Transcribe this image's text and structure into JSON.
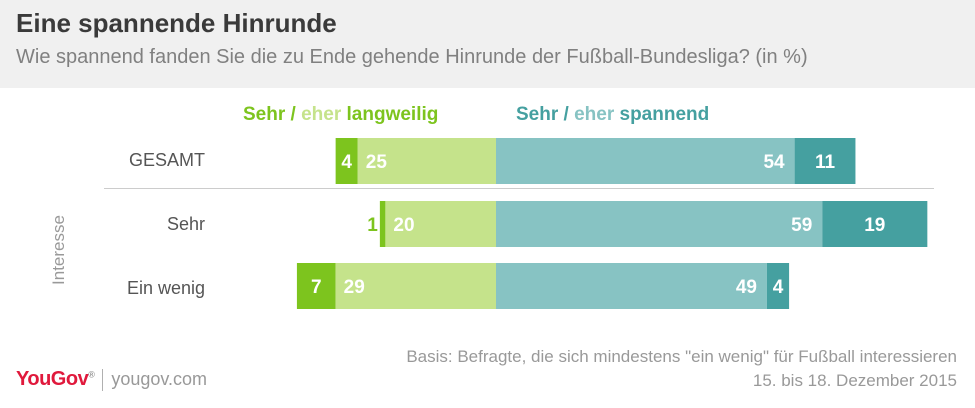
{
  "header": {
    "title": "Eine spannende Hinrunde",
    "subtitle": "Wie spannend fanden Sie die zu Ende gehende Hinrunde der Fußball-Bundesliga? (in %)"
  },
  "legend": {
    "boring_strong": "Sehr",
    "boring_sep": " / ",
    "boring_light": "eher",
    "boring_rest": " langweilig",
    "exciting_strong": "Sehr",
    "exciting_sep": " / ",
    "exciting_light": "eher",
    "exciting_rest": " spannend"
  },
  "group_label": "Interesse",
  "colors": {
    "very_boring": "#7dc41e",
    "rather_boring": "#c5e38b",
    "rather_exciting": "#87c3c3",
    "very_exciting": "#45a0a0",
    "boring_text": "#7dc41e",
    "exciting_text": "#45a0a0"
  },
  "chart_data": {
    "type": "bar",
    "orientation": "horizontal",
    "stacked": "diverging",
    "unit": "%",
    "categories": [
      "GESAMT",
      "Sehr",
      "Ein wenig"
    ],
    "series": [
      {
        "name": "Sehr langweilig",
        "side": "left",
        "values": [
          4,
          1,
          7
        ]
      },
      {
        "name": "Eher langweilig",
        "side": "left",
        "values": [
          25,
          20,
          29
        ]
      },
      {
        "name": "Eher spannend",
        "side": "right",
        "values": [
          54,
          59,
          49
        ]
      },
      {
        "name": "Sehr spannend",
        "side": "right",
        "values": [
          11,
          19,
          4
        ]
      }
    ]
  },
  "footer": {
    "basis": "Basis: Befragte, die sich mindestens \"ein wenig\" für Fußball interessieren",
    "date": "15. bis 18. Dezember 2015",
    "brand": "YouGov",
    "brand_mark": "®",
    "url": "yougov.com"
  }
}
